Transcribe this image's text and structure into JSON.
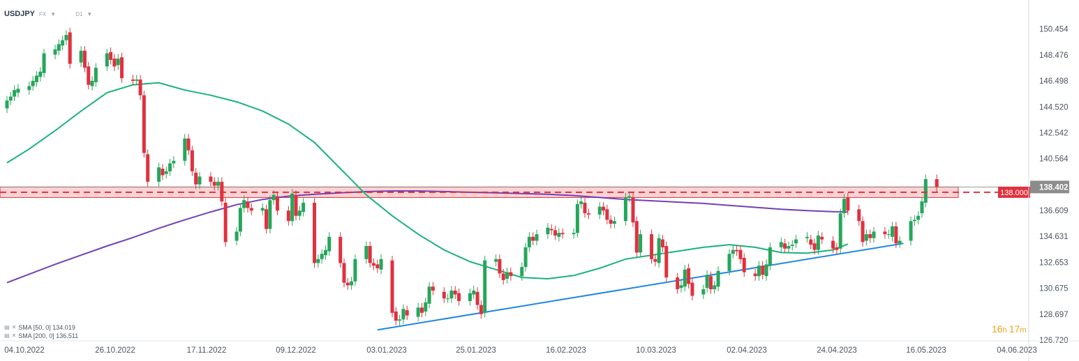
{
  "header": {
    "symbol": "USDJPY",
    "market": "FX",
    "timeframe": "D1"
  },
  "indicators": [
    {
      "label": "SMA [50, 0] 134.019"
    },
    {
      "label": "SMA [200, 0] 136.511"
    }
  ],
  "price_axis": {
    "ticks": [
      "150.454",
      "148.476",
      "146.498",
      "144.520",
      "142.542",
      "140.564",
      "136.609",
      "134.631",
      "132.653",
      "130.675",
      "128.697",
      "126.720"
    ],
    "current_price": "138.402",
    "level_label": "138.000"
  },
  "time_axis": {
    "ticks": [
      "04.10.2022",
      "26.10.2022",
      "17.11.2022",
      "09.12.2022",
      "03.01.2023",
      "25.01.2023",
      "16.02.2023",
      "10.03.2023",
      "02.04.2023",
      "24.04.2023",
      "16.05.2023",
      "04.06.2023"
    ]
  },
  "countdown": {
    "hours": "16",
    "minutes": "17"
  },
  "colors": {
    "up": "#26a65b",
    "down": "#e0313f",
    "sma50": "#19b37a",
    "sma200": "#7240b8",
    "trendline": "#1f86e0",
    "level": "#e0313f",
    "zone_fill": "#f7c9c9",
    "price_tag": "#8c8c8c"
  },
  "chart_data": {
    "type": "candlestick",
    "symbol": "USDJPY",
    "timeframe": "D1",
    "ylim": [
      126.72,
      151.5
    ],
    "xlim": [
      "2022-10-04",
      "2023-06-08"
    ],
    "horizontal_level": 138.0,
    "support_zone": [
      137.6,
      138.4
    ],
    "last_price": 138.402,
    "trendline": {
      "from": {
        "date": "2023-01-12",
        "price": 127.5
      },
      "to": {
        "date": "2023-06-03",
        "price": 134.1
      }
    },
    "sma50": [
      [
        "2022-10-04",
        140.25
      ],
      [
        "2022-10-10",
        141.3
      ],
      [
        "2022-10-17",
        142.7
      ],
      [
        "2022-10-24",
        144.2
      ],
      [
        "2022-10-31",
        145.6
      ],
      [
        "2022-11-07",
        146.2
      ],
      [
        "2022-11-14",
        146.35
      ],
      [
        "2022-11-21",
        145.8
      ],
      [
        "2022-11-28",
        145.4
      ],
      [
        "2022-12-05",
        144.9
      ],
      [
        "2022-12-12",
        144.2
      ],
      [
        "2022-12-19",
        143.2
      ],
      [
        "2022-12-26",
        141.8
      ],
      [
        "2023-01-02",
        139.8
      ],
      [
        "2023-01-09",
        137.8
      ],
      [
        "2023-01-16",
        136.2
      ],
      [
        "2023-01-23",
        134.8
      ],
      [
        "2023-01-30",
        133.6
      ],
      [
        "2023-02-06",
        132.7
      ],
      [
        "2023-02-13",
        132.1
      ],
      [
        "2023-02-20",
        131.5
      ],
      [
        "2023-02-27",
        131.4
      ],
      [
        "2023-03-06",
        131.65
      ],
      [
        "2023-03-13",
        132.2
      ],
      [
        "2023-03-20",
        132.9
      ],
      [
        "2023-03-27",
        133.2
      ],
      [
        "2023-04-03",
        133.5
      ],
      [
        "2023-04-10",
        133.8
      ],
      [
        "2023-04-17",
        134.0
      ],
      [
        "2023-04-24",
        133.8
      ],
      [
        "2023-05-01",
        133.4
      ],
      [
        "2023-05-08",
        133.35
      ],
      [
        "2023-05-15",
        133.6
      ],
      [
        "2023-05-19",
        134.05
      ]
    ],
    "sma200": [
      [
        "2022-10-04",
        131.1
      ],
      [
        "2022-10-10",
        131.75
      ],
      [
        "2022-10-17",
        132.5
      ],
      [
        "2022-10-24",
        133.2
      ],
      [
        "2022-10-31",
        133.9
      ],
      [
        "2022-11-07",
        134.55
      ],
      [
        "2022-11-14",
        135.25
      ],
      [
        "2022-11-21",
        135.9
      ],
      [
        "2022-11-28",
        136.5
      ],
      [
        "2022-12-05",
        137.05
      ],
      [
        "2022-12-12",
        137.45
      ],
      [
        "2022-12-19",
        137.7
      ],
      [
        "2022-12-26",
        137.85
      ],
      [
        "2023-01-02",
        137.95
      ],
      [
        "2023-01-09",
        138.05
      ],
      [
        "2023-01-16",
        138.1
      ],
      [
        "2023-01-23",
        138.1
      ],
      [
        "2023-01-30",
        138.05
      ],
      [
        "2023-02-06",
        138.0
      ],
      [
        "2023-02-13",
        137.95
      ],
      [
        "2023-02-20",
        137.9
      ],
      [
        "2023-02-27",
        137.85
      ],
      [
        "2023-03-06",
        137.75
      ],
      [
        "2023-03-13",
        137.6
      ],
      [
        "2023-03-20",
        137.45
      ],
      [
        "2023-03-27",
        137.35
      ],
      [
        "2023-04-03",
        137.25
      ],
      [
        "2023-04-10",
        137.15
      ],
      [
        "2023-04-17",
        137.0
      ],
      [
        "2023-04-24",
        136.85
      ],
      [
        "2023-05-01",
        136.7
      ],
      [
        "2023-05-08",
        136.6
      ],
      [
        "2023-05-15",
        136.52
      ],
      [
        "2023-05-19",
        136.5
      ]
    ],
    "candles": [
      [
        "2022-10-04",
        144.4,
        145.0
      ],
      [
        "2022-10-05",
        145.0,
        145.3
      ],
      [
        "2022-10-06",
        145.3,
        145.8
      ],
      [
        "2022-10-07",
        145.6,
        145.9
      ],
      [
        "2022-10-10",
        145.8,
        146.1
      ],
      [
        "2022-10-11",
        146.1,
        146.5
      ],
      [
        "2022-10-12",
        146.4,
        146.9
      ],
      [
        "2022-10-13",
        146.8,
        147.2
      ],
      [
        "2022-10-14",
        147.1,
        148.6
      ],
      [
        "2022-10-17",
        148.5,
        148.9
      ],
      [
        "2022-10-18",
        148.8,
        149.3
      ],
      [
        "2022-10-19",
        149.2,
        149.6
      ],
      [
        "2022-10-20",
        149.6,
        150.0
      ],
      [
        "2022-10-21",
        150.2,
        147.8
      ],
      [
        "2022-10-24",
        147.9,
        148.8
      ],
      [
        "2022-10-25",
        148.8,
        147.5
      ],
      [
        "2022-10-26",
        147.6,
        146.2
      ],
      [
        "2022-10-27",
        146.1,
        146.5
      ],
      [
        "2022-10-28",
        146.4,
        147.5
      ],
      [
        "2022-10-31",
        147.6,
        148.6
      ],
      [
        "2022-11-01",
        148.7,
        148.1
      ],
      [
        "2022-11-02",
        148.2,
        147.6
      ],
      [
        "2022-11-03",
        147.7,
        148.2
      ],
      [
        "2022-11-04",
        148.3,
        146.7
      ],
      [
        "2022-11-07",
        146.6,
        146.5
      ],
      [
        "2022-11-08",
        146.5,
        146.6
      ],
      [
        "2022-11-09",
        146.6,
        145.4
      ],
      [
        "2022-11-10",
        145.4,
        141.0
      ],
      [
        "2022-11-11",
        140.9,
        138.8
      ],
      [
        "2022-11-14",
        138.8,
        139.9
      ],
      [
        "2022-11-15",
        139.8,
        139.3
      ],
      [
        "2022-11-16",
        139.4,
        139.6
      ],
      [
        "2022-11-17",
        139.6,
        140.2
      ],
      [
        "2022-11-18",
        140.2,
        140.4
      ],
      [
        "2022-11-21",
        140.4,
        142.1
      ],
      [
        "2022-11-22",
        142.1,
        141.2
      ],
      [
        "2022-11-23",
        141.2,
        139.6
      ],
      [
        "2022-11-24",
        139.5,
        138.6
      ],
      [
        "2022-11-25",
        138.6,
        139.2
      ],
      [
        "2022-11-28",
        139.2,
        138.8
      ],
      [
        "2022-11-29",
        138.8,
        138.5
      ],
      [
        "2022-11-30",
        138.5,
        138.8
      ],
      [
        "2022-12-01",
        138.8,
        137.3
      ],
      [
        "2022-12-02",
        137.2,
        134.2
      ],
      [
        "2022-12-05",
        134.3,
        135.0
      ],
      [
        "2022-12-06",
        135.0,
        136.8
      ],
      [
        "2022-12-07",
        136.8,
        137.4
      ],
      [
        "2022-12-08",
        137.3,
        136.8
      ],
      [
        "2022-12-09",
        136.8,
        136.6
      ],
      [
        "2022-12-12",
        136.6,
        136.8
      ],
      [
        "2022-12-13",
        136.7,
        135.2
      ],
      [
        "2022-12-14",
        135.2,
        137.4
      ],
      [
        "2022-12-15",
        137.4,
        137.8
      ],
      [
        "2022-12-16",
        137.7,
        136.6
      ],
      [
        "2022-12-19",
        136.6,
        135.8
      ],
      [
        "2022-12-20",
        135.8,
        137.9
      ],
      [
        "2022-12-21",
        137.8,
        136.2
      ],
      [
        "2022-12-22",
        136.2,
        136.6
      ],
      [
        "2022-12-23",
        136.5,
        137.2
      ],
      [
        "2022-12-26",
        137.2,
        132.6
      ],
      [
        "2022-12-27",
        132.6,
        132.9
      ],
      [
        "2022-12-28",
        132.9,
        133.3
      ],
      [
        "2022-12-29",
        133.2,
        133.6
      ],
      [
        "2022-12-30",
        133.5,
        134.6
      ],
      [
        "2023-01-02",
        134.6,
        132.6
      ],
      [
        "2023-01-03",
        132.6,
        131.1
      ],
      [
        "2023-01-04",
        131.1,
        130.9
      ],
      [
        "2023-01-05",
        130.9,
        131.2
      ],
      [
        "2023-01-06",
        131.2,
        132.9
      ],
      [
        "2023-01-09",
        132.9,
        133.9
      ],
      [
        "2023-01-10",
        133.9,
        132.6
      ],
      [
        "2023-01-11",
        132.6,
        132.4
      ],
      [
        "2023-01-12",
        132.5,
        132.2
      ],
      [
        "2023-01-13",
        132.1,
        132.9
      ],
      [
        "2023-01-16",
        132.8,
        128.8
      ],
      [
        "2023-01-17",
        128.9,
        128.2
      ],
      [
        "2023-01-18",
        128.2,
        128.3
      ],
      [
        "2023-01-19",
        128.3,
        129.1
      ],
      [
        "2023-01-20",
        129.0,
        128.6
      ],
      [
        "2023-01-23",
        128.5,
        129.2
      ],
      [
        "2023-01-24",
        129.2,
        128.8
      ],
      [
        "2023-01-25",
        128.9,
        129.6
      ],
      [
        "2023-01-26",
        129.5,
        130.8
      ],
      [
        "2023-01-27",
        130.8,
        130.5
      ],
      [
        "2023-01-30",
        130.4,
        129.9
      ],
      [
        "2023-01-31",
        129.9,
        129.9
      ],
      [
        "2023-02-01",
        129.9,
        130.5
      ],
      [
        "2023-02-02",
        130.5,
        130.2
      ],
      [
        "2023-02-03",
        130.3,
        129.7
      ],
      [
        "2023-02-06",
        129.7,
        130.3
      ],
      [
        "2023-02-07",
        130.2,
        130.5
      ],
      [
        "2023-02-08",
        130.4,
        129.4
      ],
      [
        "2023-02-09",
        129.4,
        128.7
      ],
      [
        "2023-02-10",
        128.8,
        132.8
      ],
      [
        "2023-02-13",
        132.7,
        132.9
      ],
      [
        "2023-02-14",
        132.9,
        131.8
      ],
      [
        "2023-02-15",
        131.8,
        131.3
      ],
      [
        "2023-02-16",
        131.4,
        131.9
      ],
      [
        "2023-02-17",
        131.9,
        131.6
      ],
      [
        "2023-02-20",
        131.6,
        132.3
      ],
      [
        "2023-02-21",
        132.3,
        133.8
      ],
      [
        "2023-02-22",
        133.8,
        134.6
      ],
      [
        "2023-02-23",
        134.6,
        134.3
      ],
      [
        "2023-02-24",
        134.3,
        134.8
      ],
      [
        "2023-02-27",
        134.8,
        135.3
      ],
      [
        "2023-02-28",
        135.2,
        135.1
      ],
      [
        "2023-03-01",
        135.1,
        134.7
      ],
      [
        "2023-03-02",
        134.6,
        134.9
      ],
      [
        "2023-03-03",
        134.9,
        134.8
      ],
      [
        "2023-03-06",
        134.8,
        134.9
      ],
      [
        "2023-03-07",
        134.9,
        137.1
      ],
      [
        "2023-03-08",
        137.1,
        137.3
      ],
      [
        "2023-03-09",
        137.2,
        136.4
      ],
      [
        "2023-03-10",
        136.4,
        136.3
      ],
      [
        "2023-03-13",
        136.3,
        136.9
      ],
      [
        "2023-03-14",
        136.9,
        136.6
      ],
      [
        "2023-03-15",
        136.7,
        135.9
      ],
      [
        "2023-03-16",
        135.9,
        135.6
      ],
      [
        "2023-03-17",
        135.6,
        135.8
      ],
      [
        "2023-03-20",
        135.8,
        137.6
      ],
      [
        "2023-03-21",
        137.6,
        137.7
      ],
      [
        "2023-03-22",
        137.6,
        135.7
      ],
      [
        "2023-03-23",
        135.8,
        133.4
      ],
      [
        "2023-03-24",
        133.4,
        134.8
      ],
      [
        "2023-03-27",
        134.8,
        132.9
      ],
      [
        "2023-03-28",
        132.9,
        132.7
      ],
      [
        "2023-03-29",
        132.6,
        134.5
      ],
      [
        "2023-03-30",
        134.4,
        133.8
      ],
      [
        "2023-03-31",
        133.9,
        131.5
      ],
      [
        "2023-04-03",
        131.5,
        130.6
      ],
      [
        "2023-04-04",
        130.7,
        130.9
      ],
      [
        "2023-04-05",
        130.8,
        132.1
      ],
      [
        "2023-04-06",
        132.2,
        131.0
      ],
      [
        "2023-04-07",
        131.1,
        130.1
      ],
      [
        "2023-04-10",
        130.2,
        130.6
      ],
      [
        "2023-04-11",
        130.7,
        131.7
      ],
      [
        "2023-04-12",
        131.6,
        130.6
      ],
      [
        "2023-04-13",
        130.6,
        130.9
      ],
      [
        "2023-04-14",
        130.8,
        132.0
      ],
      [
        "2023-04-17",
        132.0,
        133.3
      ],
      [
        "2023-04-18",
        133.3,
        133.6
      ],
      [
        "2023-04-19",
        133.6,
        133.5
      ],
      [
        "2023-04-20",
        133.6,
        132.9
      ],
      [
        "2023-04-21",
        133.0,
        131.9
      ],
      [
        "2023-04-24",
        131.8,
        131.6
      ],
      [
        "2023-04-25",
        131.6,
        132.4
      ],
      [
        "2023-04-26",
        132.4,
        131.7
      ],
      [
        "2023-04-27",
        131.6,
        132.5
      ],
      [
        "2023-04-28",
        132.4,
        133.8
      ],
      [
        "2023-05-01",
        133.8,
        134.2
      ],
      [
        "2023-05-02",
        134.1,
        133.7
      ],
      [
        "2023-05-03",
        133.7,
        133.9
      ],
      [
        "2023-05-04",
        133.9,
        134.0
      ],
      [
        "2023-05-05",
        134.1,
        134.4
      ],
      [
        "2023-05-08",
        134.5,
        134.6
      ],
      [
        "2023-05-09",
        134.4,
        134.0
      ],
      [
        "2023-05-10",
        134.1,
        133.6
      ],
      [
        "2023-05-11",
        133.6,
        134.7
      ],
      [
        "2023-05-12",
        134.6,
        134.4
      ],
      [
        "2023-05-15",
        134.3,
        133.7
      ],
      [
        "2023-05-16",
        133.8,
        133.6
      ],
      [
        "2023-05-17",
        133.7,
        136.4
      ],
      [
        "2023-05-18",
        136.4,
        137.5
      ],
      [
        "2023-05-19",
        137.6,
        136.6
      ],
      [
        "2023-05-22",
        136.7,
        135.8
      ],
      [
        "2023-05-23",
        135.8,
        134.2
      ],
      [
        "2023-05-24",
        134.3,
        134.8
      ],
      [
        "2023-05-25",
        134.8,
        134.5
      ],
      [
        "2023-05-26",
        134.5,
        135.0
      ],
      [
        "2023-05-29",
        135.0,
        134.8
      ],
      [
        "2023-05-30",
        134.8,
        134.8
      ],
      [
        "2023-05-31",
        134.6,
        135.4
      ],
      [
        "2023-06-01",
        135.4,
        134.1
      ],
      [
        "2023-06-02",
        134.1,
        134.3
      ],
      [
        "2023-06-05",
        134.3,
        135.8
      ],
      [
        "2023-06-06",
        135.8,
        135.9
      ],
      [
        "2023-06-07",
        135.9,
        136.2
      ],
      [
        "2023-06-08",
        136.4,
        137.3
      ],
      [
        "2023-06-09",
        137.2,
        139.0
      ],
      [
        "2023-06-12",
        139.0,
        138.4
      ]
    ]
  }
}
